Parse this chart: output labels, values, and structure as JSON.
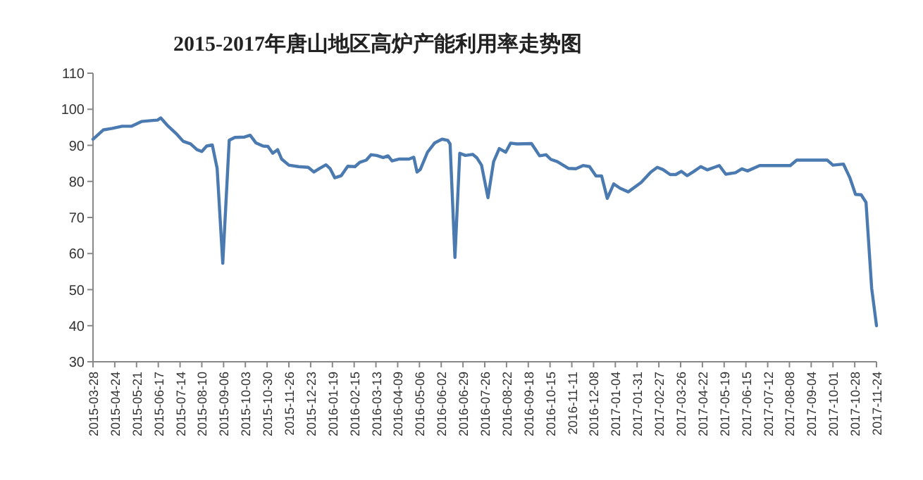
{
  "chart_data": {
    "type": "line",
    "title": "2015-2017年唐山地区高炉产能利用率走势图",
    "x": [
      "2015-03-28",
      "2015-04-10",
      "2015-04-21",
      "2015-05-03",
      "2015-05-15",
      "2015-05-27",
      "2015-06-10",
      "2015-06-16",
      "2015-06-20",
      "2015-06-28",
      "2015-07-09",
      "2015-07-18",
      "2015-07-27",
      "2015-08-04",
      "2015-08-10",
      "2015-08-16",
      "2015-08-23",
      "2015-08-29",
      "2015-09-05",
      "2015-09-13",
      "2015-09-20",
      "2015-10-02",
      "2015-10-09",
      "2015-10-16",
      "2015-10-25",
      "2015-10-31",
      "2015-11-06",
      "2015-11-12",
      "2015-11-17",
      "2015-11-26",
      "2015-12-08",
      "2015-12-20",
      "2015-12-27",
      "2016-01-03",
      "2016-01-11",
      "2016-01-16",
      "2016-01-22",
      "2016-01-30",
      "2016-02-07",
      "2016-02-16",
      "2016-02-22",
      "2016-03-01",
      "2016-03-07",
      "2016-03-14",
      "2016-03-22",
      "2016-03-28",
      "2016-04-02",
      "2016-04-11",
      "2016-04-23",
      "2016-04-29",
      "2016-05-03",
      "2016-05-07",
      "2016-05-16",
      "2016-05-25",
      "2016-06-03",
      "2016-06-10",
      "2016-06-13",
      "2016-06-19",
      "2016-06-25",
      "2016-07-02",
      "2016-07-11",
      "2016-07-16",
      "2016-07-22",
      "2016-07-30",
      "2016-08-06",
      "2016-08-13",
      "2016-08-21",
      "2016-08-27",
      "2016-09-04",
      "2016-09-22",
      "2016-10-02",
      "2016-10-10",
      "2016-10-16",
      "2016-10-24",
      "2016-11-07",
      "2016-11-16",
      "2016-11-25",
      "2016-12-03",
      "2016-12-11",
      "2016-12-18",
      "2016-12-25",
      "2017-01-02",
      "2017-01-10",
      "2017-01-20",
      "2017-02-05",
      "2017-02-17",
      "2017-02-25",
      "2017-03-04",
      "2017-03-13",
      "2017-03-20",
      "2017-03-27",
      "2017-04-03",
      "2017-04-11",
      "2017-04-20",
      "2017-04-28",
      "2017-05-13",
      "2017-05-21",
      "2017-06-02",
      "2017-06-10",
      "2017-06-17",
      "2017-07-02",
      "2017-08-09",
      "2017-08-17",
      "2017-09-24",
      "2017-10-01",
      "2017-10-14",
      "2017-10-22",
      "2017-10-29",
      "2017-11-05",
      "2017-11-11",
      "2017-11-18",
      "2017-11-24"
    ],
    "series": [
      {
        "color": "#4a7ab0",
        "values": [
          91.7,
          94.3,
          94.7,
          95.3,
          95.3,
          96.6,
          96.9,
          97.0,
          97.6,
          95.6,
          93.3,
          91.1,
          90.4,
          88.8,
          88.3,
          89.8,
          90.1,
          83.6,
          57.3,
          91.4,
          92.2,
          92.3,
          92.8,
          90.7,
          89.8,
          89.7,
          87.8,
          88.8,
          86.2,
          84.5,
          84.1,
          83.9,
          82.6,
          83.6,
          84.6,
          83.6,
          81.0,
          81.6,
          84.2,
          84.1,
          85.3,
          85.9,
          87.4,
          87.2,
          86.6,
          87.1,
          85.7,
          86.2,
          86.2,
          86.7,
          82.6,
          83.3,
          88.1,
          90.7,
          91.7,
          91.4,
          90.4,
          58.9,
          87.8,
          87.2,
          87.5,
          86.6,
          84.5,
          75.5,
          85.5,
          89.1,
          88.1,
          90.6,
          90.4,
          90.5,
          87.1,
          87.4,
          86.1,
          85.5,
          83.6,
          83.5,
          84.4,
          84.1,
          81.5,
          81.5,
          75.3,
          79.3,
          78.1,
          77.1,
          79.7,
          82.6,
          83.9,
          83.3,
          81.9,
          81.9,
          82.8,
          81.6,
          82.7,
          84.1,
          83.2,
          84.4,
          82.0,
          82.4,
          83.5,
          82.9,
          84.4,
          84.4,
          85.9,
          85.9,
          84.5,
          84.8,
          81.0,
          76.4,
          76.3,
          74.2,
          50.4,
          40.0
        ]
      }
    ],
    "xlim": [
      "2015-03-28",
      "2017-11-24"
    ],
    "xticks": [
      "2015-03-28",
      "2015-04-24",
      "2015-05-21",
      "2015-06-17",
      "2015-07-14",
      "2015-08-10",
      "2015-09-06",
      "2015-10-03",
      "2015-10-30",
      "2015-11-26",
      "2015-12-23",
      "2016-01-19",
      "2016-02-15",
      "2016-03-13",
      "2016-04-09",
      "2016-05-06",
      "2016-06-02",
      "2016-06-29",
      "2016-07-26",
      "2016-08-22",
      "2016-09-18",
      "2016-10-15",
      "2016-11-11",
      "2016-12-08",
      "2017-01-04",
      "2017-01-31",
      "2017-02-27",
      "2017-03-26",
      "2017-04-22",
      "2017-05-19",
      "2017-06-15",
      "2017-07-12",
      "2017-08-08",
      "2017-09-04",
      "2017-10-01",
      "2017-10-28",
      "2017-11-24"
    ],
    "ylim": [
      30,
      110
    ],
    "yticks": [
      30,
      40,
      50,
      60,
      70,
      80,
      90,
      100,
      110
    ],
    "marker": "none",
    "line_style": "solid"
  }
}
